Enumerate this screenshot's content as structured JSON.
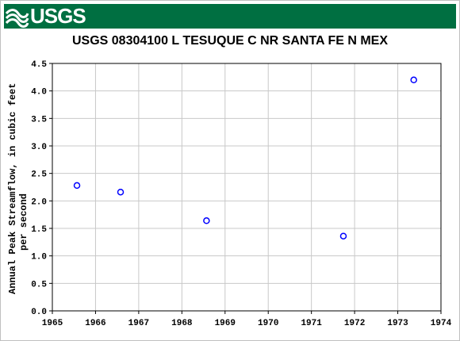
{
  "header": {
    "logo_text": "USGS",
    "banner_color": "#006f41"
  },
  "chart_data": {
    "type": "scatter",
    "title": "USGS 08304100 L TESUQUE C NR SANTA FE N MEX",
    "ylabel_lines": [
      "Annual Peak Streamflow, in cubic feet",
      "per second"
    ],
    "xlabel": "",
    "xlim": [
      1965,
      1974
    ],
    "ylim": [
      0.0,
      4.5
    ],
    "x_ticks": [
      "1965",
      "1966",
      "1967",
      "1968",
      "1969",
      "1970",
      "1971",
      "1972",
      "1973",
      "1974"
    ],
    "y_ticks": [
      "0.0",
      "0.5",
      "1.0",
      "1.5",
      "2.0",
      "2.5",
      "3.0",
      "3.5",
      "4.0",
      "4.5"
    ],
    "grid": true,
    "marker": "open-circle",
    "marker_color": "#0000ff",
    "points": [
      {
        "x": 1965.57,
        "y": 2.28
      },
      {
        "x": 1966.58,
        "y": 2.16
      },
      {
        "x": 1968.57,
        "y": 1.64
      },
      {
        "x": 1971.74,
        "y": 1.36
      },
      {
        "x": 1973.37,
        "y": 4.2
      }
    ]
  }
}
